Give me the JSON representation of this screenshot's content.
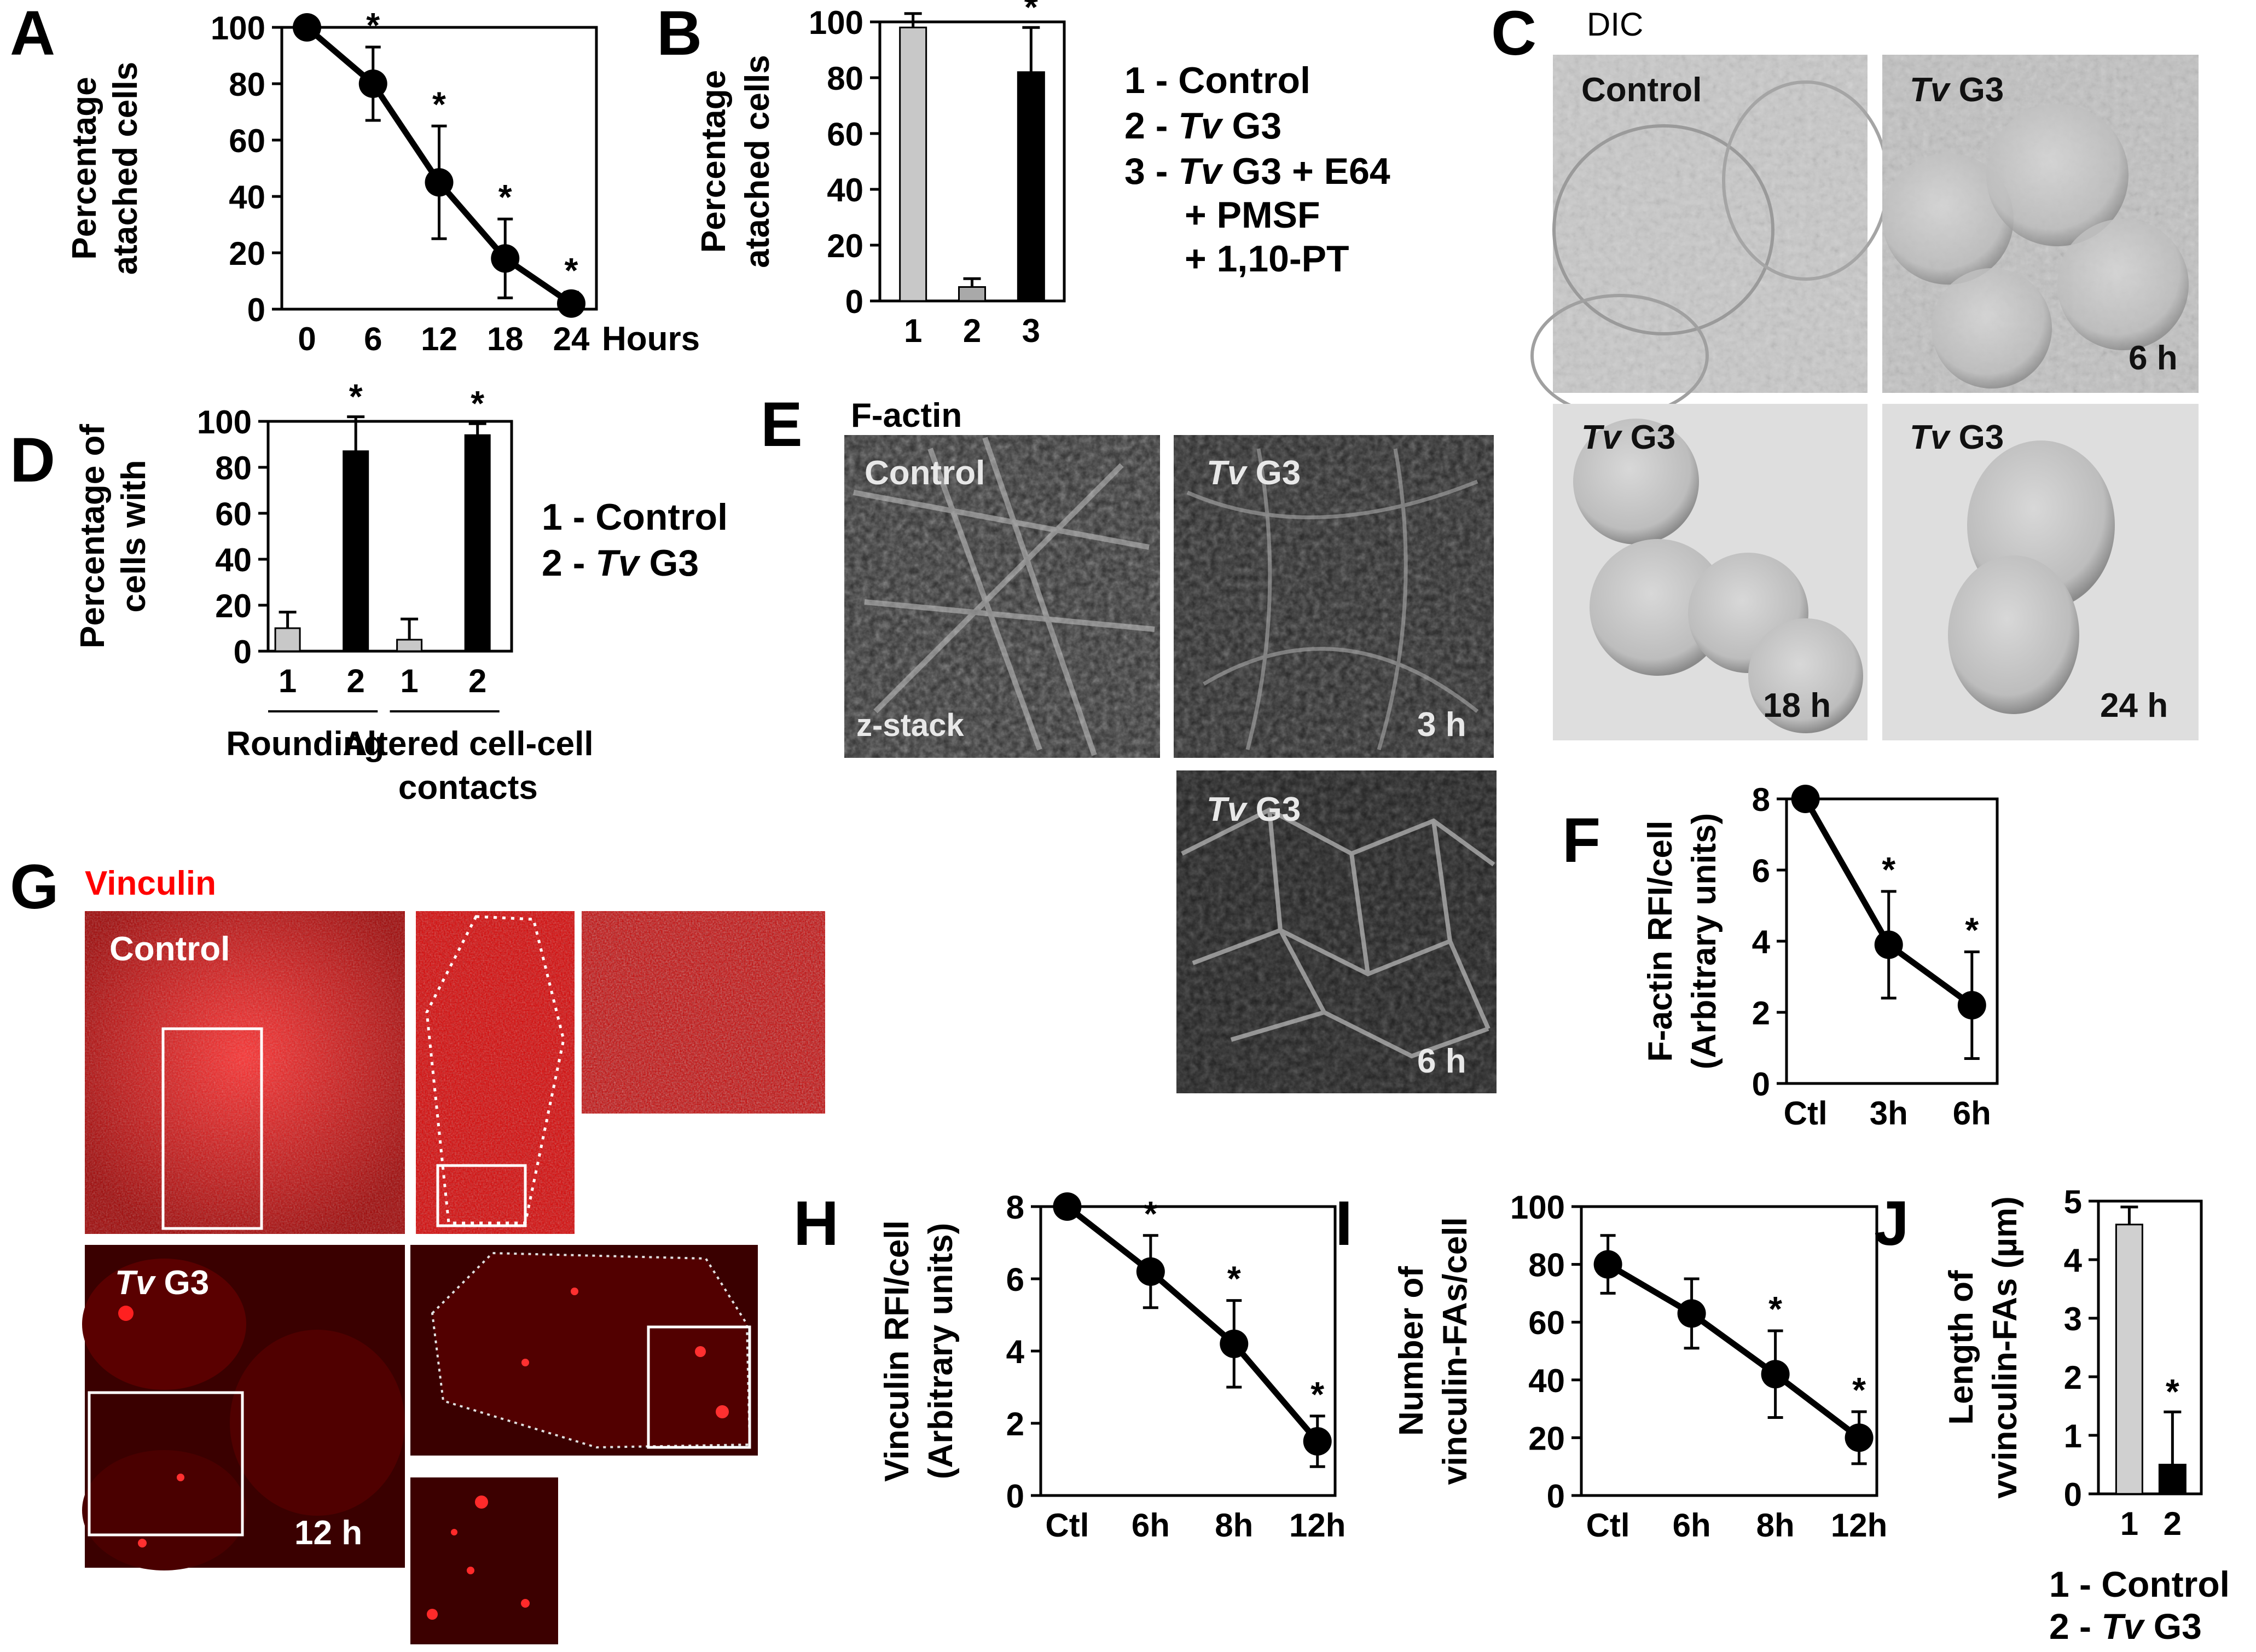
{
  "panels": {
    "A": "A",
    "B": "B",
    "C": "C",
    "D": "D",
    "E": "E",
    "F": "F",
    "G": "G",
    "H": "H",
    "I": "I",
    "J": "J"
  },
  "legends": {
    "B": {
      "line1": "1 - Control",
      "line2_prefix": "2 - ",
      "line2_italic": "Tv",
      "line2_suffix": " G3",
      "line3_prefix": "3 - ",
      "line3_italic": "Tv",
      "line3_suffix": " G3 + E64",
      "line4": "+ PMSF",
      "line5": "+ 1,10-PT"
    },
    "D": {
      "line1": "1 - Control",
      "line2_prefix": "2 - ",
      "line2_italic": "Tv",
      "line2_suffix": " G3"
    },
    "J": {
      "line1": "1 - Control",
      "line2_prefix": "2 - ",
      "line2_italic": "Tv",
      "line2_suffix": " G3"
    }
  },
  "micrographs": {
    "C": {
      "title": "DIC",
      "tv": "Tv",
      "g3": " G3",
      "control": "Control",
      "t6": "6 h",
      "t18": "18 h",
      "t24": "24 h"
    },
    "E": {
      "title": "F-actin",
      "tv": "Tv",
      "g3": " G3",
      "control": "Control",
      "zstack": "z-stack",
      "t3": "3 h",
      "t6": "6 h"
    },
    "G": {
      "title": "Vinculin",
      "tv": "Tv",
      "g3": " G3",
      "control": "Control",
      "t12": "12 h"
    }
  },
  "chart_data": [
    {
      "panel": "A",
      "type": "line",
      "ylabel": [
        "Percentage",
        "atached cells"
      ],
      "xlabel": "Hours",
      "categories": [
        "0",
        "6",
        "12",
        "18",
        "24"
      ],
      "values": [
        100,
        80,
        45,
        18,
        2
      ],
      "errors": [
        0,
        13,
        20,
        14,
        4
      ],
      "significant": [
        false,
        true,
        true,
        true,
        true
      ],
      "ylim": [
        0,
        100
      ],
      "yticks": [
        0,
        20,
        40,
        60,
        80,
        100
      ],
      "color": "#000000",
      "sig_symbol": "*"
    },
    {
      "panel": "B",
      "type": "bar",
      "ylabel": [
        "Percentage",
        "atached cells"
      ],
      "categories": [
        "1",
        "2",
        "3"
      ],
      "values": [
        98,
        5,
        82
      ],
      "errors": [
        5,
        3,
        16
      ],
      "significant": [
        false,
        false,
        true
      ],
      "colors": [
        "#c8c8c8",
        "#a9a9a9",
        "#000000"
      ],
      "ylim": [
        0,
        100
      ],
      "yticks": [
        0,
        20,
        40,
        60,
        80,
        100
      ],
      "sig_symbol": "*"
    },
    {
      "panel": "D",
      "type": "bar",
      "ylabel": [
        "Percentage of",
        "cells with"
      ],
      "groups": [
        "Rounding",
        "Altered cell-cell",
        "contacts"
      ],
      "categories": [
        "1",
        "2",
        "1",
        "2"
      ],
      "values": [
        10,
        87,
        5,
        94
      ],
      "errors": [
        7,
        15,
        9,
        5
      ],
      "significant": [
        false,
        true,
        false,
        true
      ],
      "colors": [
        "#c8c8c8",
        "#000000",
        "#c8c8c8",
        "#000000"
      ],
      "ylim": [
        0,
        100
      ],
      "yticks": [
        0,
        20,
        40,
        60,
        80,
        100
      ],
      "sig_symbol": "*"
    },
    {
      "panel": "F",
      "type": "line",
      "ylabel": [
        "F-actin RFI/cell",
        "(Arbitrary units)"
      ],
      "categories": [
        "Ctl",
        "3h",
        "6h"
      ],
      "values": [
        8,
        3.9,
        2.2
      ],
      "errors": [
        0,
        1.5,
        1.5
      ],
      "significant": [
        false,
        true,
        true
      ],
      "ylim": [
        0,
        8
      ],
      "yticks": [
        0,
        2,
        4,
        6,
        8
      ],
      "color": "#000000",
      "sig_symbol": "*"
    },
    {
      "panel": "H",
      "type": "line",
      "ylabel": [
        "Vinculin RFI/cell",
        "(Arbitrary units)"
      ],
      "categories": [
        "Ctl",
        "6h",
        "8h",
        "12h"
      ],
      "values": [
        8,
        6.2,
        4.2,
        1.5
      ],
      "errors": [
        0,
        1,
        1.2,
        0.7
      ],
      "significant": [
        false,
        true,
        true,
        true
      ],
      "ylim": [
        0,
        8
      ],
      "yticks": [
        0,
        2,
        4,
        6,
        8
      ],
      "color": "#000000",
      "sig_symbol": "*"
    },
    {
      "panel": "I",
      "type": "line",
      "ylabel": [
        "Number of",
        "vinculin-FAs/cell"
      ],
      "categories": [
        "Ctl",
        "6h",
        "8h",
        "12h"
      ],
      "values": [
        80,
        63,
        42,
        20
      ],
      "errors": [
        10,
        12,
        15,
        9
      ],
      "significant": [
        false,
        false,
        true,
        true
      ],
      "ylim": [
        0,
        100
      ],
      "yticks": [
        0,
        20,
        40,
        60,
        80,
        100
      ],
      "color": "#000000",
      "sig_symbol": "*"
    },
    {
      "panel": "J",
      "type": "bar",
      "ylabel": [
        "Length of",
        "vvinculin-FAs (µm)"
      ],
      "categories": [
        "1",
        "2"
      ],
      "values": [
        4.6,
        0.5
      ],
      "errors": [
        0.3,
        0.9
      ],
      "significant": [
        false,
        true
      ],
      "colors": [
        "#d0d0d0",
        "#000000"
      ],
      "ylim": [
        0,
        5
      ],
      "yticks": [
        0,
        1,
        2,
        3,
        4,
        5
      ],
      "sig_symbol": "*"
    }
  ]
}
